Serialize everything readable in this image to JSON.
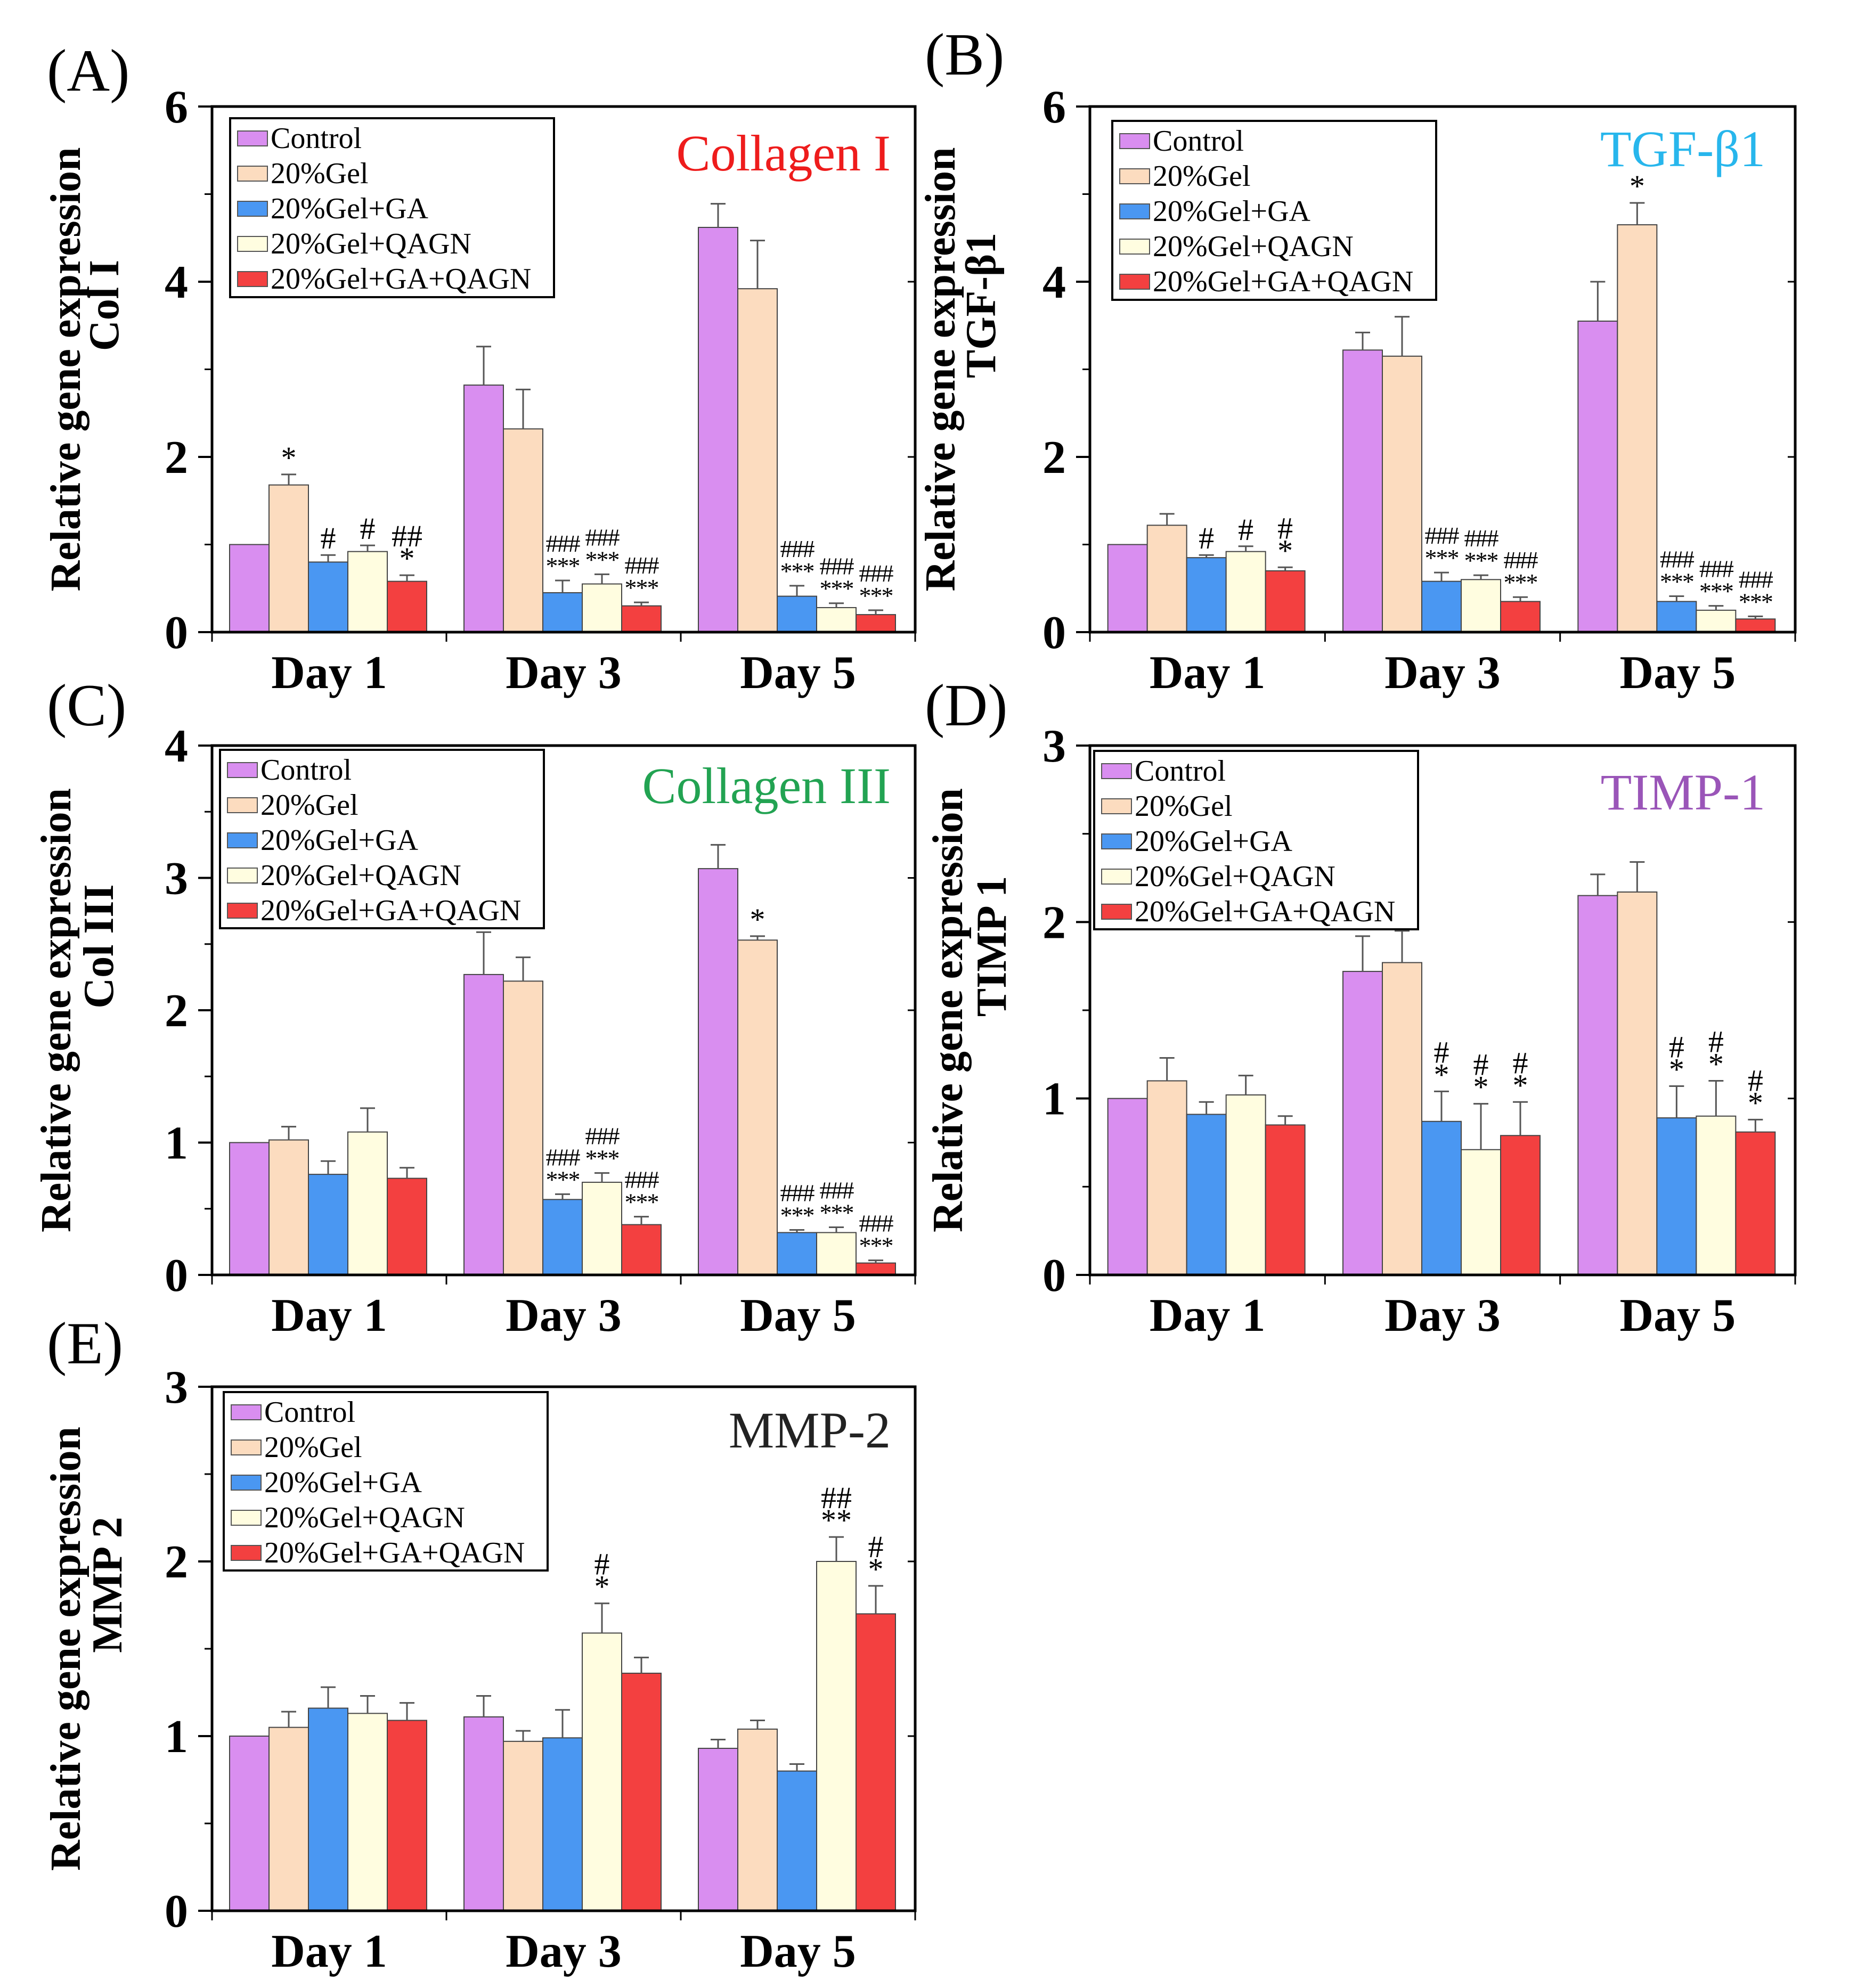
{
  "figure": {
    "legend_items": [
      "Control",
      "20%Gel",
      "20%Gel+GA",
      "20%Gel+QAGN",
      "20%Gel+GA+QAGN"
    ],
    "series_colors": [
      "#d98ef0",
      "#fcdcbf",
      "#4a97f2",
      "#fffde0",
      "#f34040"
    ],
    "title_colors": {
      "collagen_i": "#ee1c1c",
      "tgf_b1": "#27b6ec",
      "collagen_iii": "#22a352",
      "timp_1": "#9a55b8",
      "mmp_2": "#222222"
    }
  },
  "chart_data": [
    {
      "panel": "(A)",
      "type": "bar",
      "title": "Collagen I",
      "ylabel": [
        "Relative gene expression",
        "Col I"
      ],
      "xlabel": "",
      "categories": [
        "Day 1",
        "Day 3",
        "Day 5"
      ],
      "ylim": [
        0,
        6
      ],
      "yticks": [
        "0",
        "2",
        "4",
        "6"
      ],
      "series": [
        {
          "name": "Control",
          "values": [
            1.0,
            2.82,
            4.62
          ],
          "errors": [
            0,
            0.44,
            0.27
          ]
        },
        {
          "name": "20%Gel",
          "values": [
            1.68,
            2.32,
            3.92
          ],
          "errors": [
            0.12,
            0.45,
            0.55
          ]
        },
        {
          "name": "20%Gel+GA",
          "values": [
            0.8,
            0.45,
            0.41
          ],
          "errors": [
            0.08,
            0.14,
            0.12
          ]
        },
        {
          "name": "20%Gel+QAGN",
          "values": [
            0.92,
            0.55,
            0.28
          ],
          "errors": [
            0.07,
            0.11,
            0.05
          ]
        },
        {
          "name": "20%Gel+GA+QAGN",
          "values": [
            0.58,
            0.3,
            0.2
          ],
          "errors": [
            0.07,
            0.04,
            0.05
          ]
        }
      ],
      "annotations": [
        {
          "day": 0,
          "series": 1,
          "lines": [
            "*"
          ]
        },
        {
          "day": 0,
          "series": 2,
          "lines": [
            "#"
          ]
        },
        {
          "day": 0,
          "series": 3,
          "lines": [
            "#"
          ]
        },
        {
          "day": 0,
          "series": 4,
          "lines": [
            "##",
            "*"
          ]
        },
        {
          "day": 1,
          "series": 2,
          "lines": [
            "###",
            "***"
          ]
        },
        {
          "day": 1,
          "series": 3,
          "lines": [
            "###",
            "***"
          ]
        },
        {
          "day": 1,
          "series": 4,
          "lines": [
            "###",
            "***"
          ]
        },
        {
          "day": 2,
          "series": 2,
          "lines": [
            "###",
            "***"
          ]
        },
        {
          "day": 2,
          "series": 3,
          "lines": [
            "###",
            "***"
          ]
        },
        {
          "day": 2,
          "series": 4,
          "lines": [
            "###",
            "***"
          ]
        }
      ]
    },
    {
      "panel": "(B)",
      "type": "bar",
      "title": "TGF-β1",
      "ylabel": [
        "Relative gene expression",
        "TGF-β1"
      ],
      "xlabel": "",
      "categories": [
        "Day 1",
        "Day 3",
        "Day 5"
      ],
      "ylim": [
        0,
        6
      ],
      "yticks": [
        "0",
        "2",
        "4",
        "6"
      ],
      "series": [
        {
          "name": "Control",
          "values": [
            1.0,
            3.22,
            3.55
          ],
          "errors": [
            0,
            0.2,
            0.45
          ]
        },
        {
          "name": "20%Gel",
          "values": [
            1.22,
            3.15,
            4.65
          ],
          "errors": [
            0.13,
            0.45,
            0.25
          ]
        },
        {
          "name": "20%Gel+GA",
          "values": [
            0.85,
            0.58,
            0.35
          ],
          "errors": [
            0.03,
            0.1,
            0.06
          ]
        },
        {
          "name": "20%Gel+QAGN",
          "values": [
            0.92,
            0.6,
            0.25
          ],
          "errors": [
            0.06,
            0.05,
            0.05
          ]
        },
        {
          "name": "20%Gel+GA+QAGN",
          "values": [
            0.7,
            0.35,
            0.15
          ],
          "errors": [
            0.04,
            0.05,
            0.03
          ]
        }
      ],
      "annotations": [
        {
          "day": 0,
          "series": 2,
          "lines": [
            "#"
          ]
        },
        {
          "day": 0,
          "series": 3,
          "lines": [
            "#"
          ]
        },
        {
          "day": 0,
          "series": 4,
          "lines": [
            "#",
            "*"
          ]
        },
        {
          "day": 1,
          "series": 2,
          "lines": [
            "###",
            "***"
          ]
        },
        {
          "day": 1,
          "series": 3,
          "lines": [
            "###",
            "***"
          ]
        },
        {
          "day": 1,
          "series": 4,
          "lines": [
            "###",
            "***"
          ]
        },
        {
          "day": 2,
          "series": 1,
          "lines": [
            "*"
          ]
        },
        {
          "day": 2,
          "series": 2,
          "lines": [
            "###",
            "***"
          ]
        },
        {
          "day": 2,
          "series": 3,
          "lines": [
            "###",
            "***"
          ]
        },
        {
          "day": 2,
          "series": 4,
          "lines": [
            "###",
            "***"
          ]
        }
      ]
    },
    {
      "panel": "(C)",
      "type": "bar",
      "title": "Collagen III",
      "ylabel": [
        "Relative gene expression",
        "Col III"
      ],
      "xlabel": "",
      "categories": [
        "Day 1",
        "Day 3",
        "Day 5"
      ],
      "ylim": [
        0,
        4
      ],
      "yticks": [
        "0",
        "1",
        "2",
        "3",
        "4"
      ],
      "series": [
        {
          "name": "Control",
          "values": [
            1.0,
            2.27,
            3.07
          ],
          "errors": [
            0,
            0.32,
            0.18
          ]
        },
        {
          "name": "20%Gel",
          "values": [
            1.02,
            2.22,
            2.53
          ],
          "errors": [
            0.1,
            0.18,
            0.03
          ]
        },
        {
          "name": "20%Gel+GA",
          "values": [
            0.76,
            0.57,
            0.32
          ],
          "errors": [
            0.1,
            0.04,
            0.02
          ]
        },
        {
          "name": "20%Gel+QAGN",
          "values": [
            1.08,
            0.7,
            0.32
          ],
          "errors": [
            0.18,
            0.07,
            0.04
          ]
        },
        {
          "name": "20%Gel+GA+QAGN",
          "values": [
            0.73,
            0.38,
            0.09
          ],
          "errors": [
            0.08,
            0.06,
            0.02
          ]
        }
      ],
      "annotations": [
        {
          "day": 1,
          "series": 2,
          "lines": [
            "###",
            "***"
          ]
        },
        {
          "day": 1,
          "series": 3,
          "lines": [
            "###",
            "***"
          ]
        },
        {
          "day": 1,
          "series": 4,
          "lines": [
            "###",
            "***"
          ]
        },
        {
          "day": 2,
          "series": 1,
          "lines": [
            "*"
          ]
        },
        {
          "day": 2,
          "series": 2,
          "lines": [
            "###",
            "***"
          ]
        },
        {
          "day": 2,
          "series": 3,
          "lines": [
            "###",
            "***"
          ]
        },
        {
          "day": 2,
          "series": 4,
          "lines": [
            "###",
            "***"
          ]
        }
      ]
    },
    {
      "panel": "(D)",
      "type": "bar",
      "title": "TIMP-1",
      "ylabel": [
        "Relative gene expression",
        "TIMP 1"
      ],
      "xlabel": "",
      "categories": [
        "Day 1",
        "Day 3",
        "Day 5"
      ],
      "ylim": [
        0,
        3
      ],
      "yticks": [
        "0",
        "1",
        "2",
        "3"
      ],
      "series": [
        {
          "name": "Control",
          "values": [
            1.0,
            1.72,
            2.15
          ],
          "errors": [
            0,
            0.2,
            0.12
          ]
        },
        {
          "name": "20%Gel",
          "values": [
            1.1,
            1.77,
            2.17
          ],
          "errors": [
            0.13,
            0.18,
            0.17
          ]
        },
        {
          "name": "20%Gel+GA",
          "values": [
            0.91,
            0.87,
            0.89
          ],
          "errors": [
            0.07,
            0.17,
            0.18
          ]
        },
        {
          "name": "20%Gel+QAGN",
          "values": [
            1.02,
            0.71,
            0.9
          ],
          "errors": [
            0.11,
            0.26,
            0.2
          ]
        },
        {
          "name": "20%Gel+GA+QAGN",
          "values": [
            0.85,
            0.79,
            0.81
          ],
          "errors": [
            0.05,
            0.19,
            0.07
          ]
        }
      ],
      "annotations": [
        {
          "day": 1,
          "series": 2,
          "lines": [
            "#",
            "*"
          ]
        },
        {
          "day": 1,
          "series": 3,
          "lines": [
            "#",
            "*"
          ]
        },
        {
          "day": 1,
          "series": 4,
          "lines": [
            "#",
            "*"
          ]
        },
        {
          "day": 2,
          "series": 2,
          "lines": [
            "#",
            "*"
          ]
        },
        {
          "day": 2,
          "series": 3,
          "lines": [
            "#",
            "*"
          ]
        },
        {
          "day": 2,
          "series": 4,
          "lines": [
            "#",
            "*"
          ]
        }
      ]
    },
    {
      "panel": "(E)",
      "type": "bar",
      "title": "MMP-2",
      "ylabel": [
        "Relative gene expression",
        "MMP 2"
      ],
      "xlabel": "",
      "categories": [
        "Day 1",
        "Day 3",
        "Day 5"
      ],
      "ylim": [
        0,
        3
      ],
      "yticks": [
        "0",
        "1",
        "2",
        "3"
      ],
      "series": [
        {
          "name": "Control",
          "values": [
            1.0,
            1.11,
            0.93
          ],
          "errors": [
            0,
            0.12,
            0.05
          ]
        },
        {
          "name": "20%Gel",
          "values": [
            1.05,
            0.97,
            1.04
          ],
          "errors": [
            0.09,
            0.06,
            0.05
          ]
        },
        {
          "name": "20%Gel+GA",
          "values": [
            1.16,
            0.99,
            0.8
          ],
          "errors": [
            0.12,
            0.16,
            0.04
          ]
        },
        {
          "name": "20%Gel+QAGN",
          "values": [
            1.13,
            1.59,
            2.0
          ],
          "errors": [
            0.1,
            0.17,
            0.14
          ]
        },
        {
          "name": "20%Gel+GA+QAGN",
          "values": [
            1.09,
            1.36,
            1.7
          ],
          "errors": [
            0.1,
            0.09,
            0.16
          ]
        }
      ],
      "annotations": [
        {
          "day": 1,
          "series": 3,
          "lines": [
            "#",
            "*"
          ]
        },
        {
          "day": 2,
          "series": 3,
          "lines": [
            "##",
            "**"
          ]
        },
        {
          "day": 2,
          "series": 4,
          "lines": [
            "#",
            "*"
          ]
        }
      ]
    }
  ]
}
